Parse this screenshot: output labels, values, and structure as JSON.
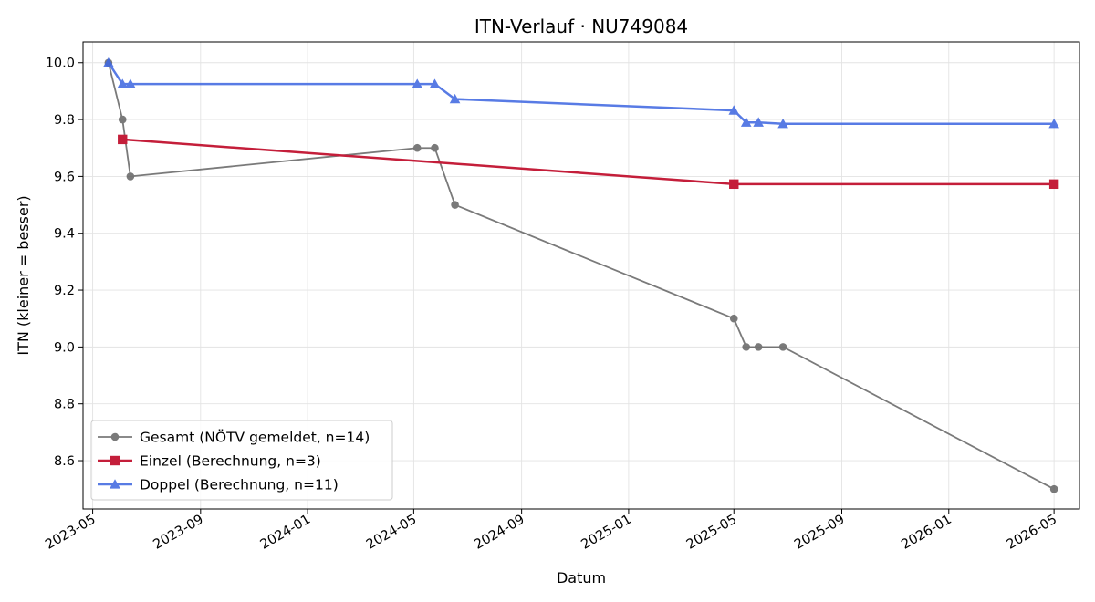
{
  "chart_data": {
    "type": "line",
    "title": "ITN-Verlauf · NU749084",
    "xlabel": "Datum",
    "ylabel": "ITN  (kleiner = besser)",
    "ylim": [
      8.43,
      10.073
    ],
    "xlim": [
      "2023-04-20",
      "2026-05-30"
    ],
    "grid": true,
    "legend_position": "lower-left",
    "yticks": [
      8.6,
      8.8,
      9.0,
      9.2,
      9.4,
      9.6,
      9.8,
      10.0
    ],
    "ytick_labels": [
      "8.6",
      "8.8",
      "9.0",
      "9.2",
      "9.4",
      "9.6",
      "9.8",
      "10.0"
    ],
    "xticks": [
      "2023-05-01",
      "2023-09-01",
      "2024-01-01",
      "2024-05-01",
      "2024-09-01",
      "2025-01-01",
      "2025-05-01",
      "2025-09-01",
      "2026-01-01",
      "2026-05-01"
    ],
    "xtick_labels": [
      "2023-05",
      "2023-09",
      "2024-01",
      "2024-05",
      "2024-09",
      "2025-01",
      "2025-05",
      "2025-09",
      "2026-01",
      "2026-05"
    ],
    "series": [
      {
        "name": "Gesamt (NÖTV gemeldet, n=14)",
        "color": "#555555",
        "opacity": 0.78,
        "marker": "circle",
        "line_width": 1.8,
        "x": [
          "2023-05-19",
          "2023-06-04",
          "2023-06-13",
          "2024-05-05",
          "2024-05-25",
          "2024-06-17",
          "2025-05-01",
          "2025-05-15",
          "2025-05-29",
          "2025-06-26",
          "2026-05-01"
        ],
        "y": [
          10.0,
          9.8,
          9.6,
          9.7,
          9.7,
          9.5,
          9.1,
          9.0,
          9.0,
          9.0,
          8.5
        ]
      },
      {
        "name": "Einzel (Berechnung, n=3)",
        "color": "#c41e3a",
        "opacity": 1,
        "marker": "square",
        "line_width": 2.5,
        "x": [
          "2023-06-04",
          "2025-05-01",
          "2026-05-01"
        ],
        "y": [
          9.73,
          9.573,
          9.573
        ]
      },
      {
        "name": "Doppel (Berechnung, n=11)",
        "color": "#4169e1",
        "opacity": 0.88,
        "marker": "triangle",
        "line_width": 2.5,
        "x": [
          "2023-05-19",
          "2023-06-04",
          "2023-06-13",
          "2024-05-05",
          "2024-05-25",
          "2024-06-17",
          "2025-05-01",
          "2025-05-15",
          "2025-05-29",
          "2025-06-26",
          "2026-05-01"
        ],
        "y": [
          10.0,
          9.925,
          9.925,
          9.925,
          9.925,
          9.872,
          9.832,
          9.79,
          9.79,
          9.785,
          9.785
        ]
      }
    ]
  }
}
